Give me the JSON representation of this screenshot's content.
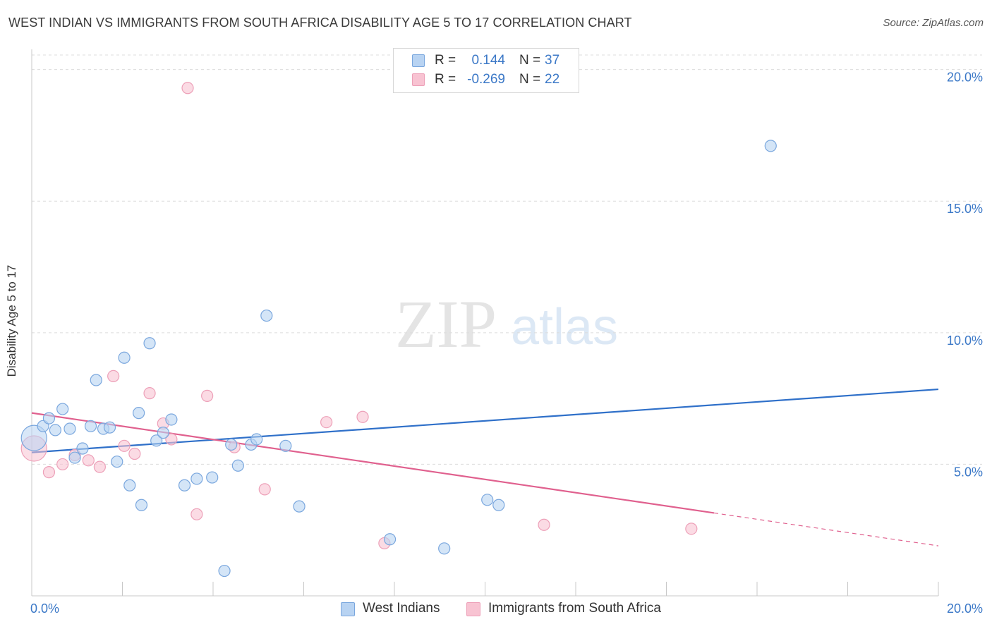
{
  "header": {
    "title": "WEST INDIAN VS IMMIGRANTS FROM SOUTH AFRICA DISABILITY AGE 5 TO 17 CORRELATION CHART",
    "source": "Source: ZipAtlas.com"
  },
  "legend_top": {
    "rows": [
      {
        "r_label": "R =",
        "r_value": "0.144",
        "n_label": "N =",
        "n_value": "37"
      },
      {
        "r_label": "R =",
        "r_value": "-0.269",
        "n_label": "N =",
        "n_value": "22"
      }
    ]
  },
  "watermark": {
    "zip": "ZIP",
    "atlas": "atlas"
  },
  "colors": {
    "blue_fill": "#b8d3f2",
    "blue_stroke": "#7aa7de",
    "blue_line": "#2f70c9",
    "pink_fill": "#f8c3d2",
    "pink_stroke": "#eda0b8",
    "pink_line": "#e0608e",
    "grid": "#dcdcdc",
    "tick_text": "#3b78c7"
  },
  "chart_data": {
    "type": "scatter",
    "title": "WEST INDIAN VS IMMIGRANTS FROM SOUTH AFRICA DISABILITY AGE 5 TO 17 CORRELATION CHART",
    "xlabel": "",
    "ylabel": "Disability Age 5 to 17",
    "xlim": [
      0,
      20
    ],
    "ylim": [
      0,
      20.5
    ],
    "x_tick_labels": [
      "0.0%",
      "20.0%"
    ],
    "y_ticks": [
      5,
      10,
      15,
      20
    ],
    "y_tick_labels": [
      "5.0%",
      "10.0%",
      "15.0%",
      "20.0%"
    ],
    "grid": true,
    "legend_position": "bottom-center",
    "series": [
      {
        "name": "West Indians",
        "color": "blue",
        "r": 0.144,
        "n": 37,
        "trend": {
          "x": [
            0,
            20
          ],
          "y": [
            5.45,
            7.85
          ]
        },
        "points": [
          {
            "x": 0.05,
            "y": 6.0,
            "big": true
          },
          {
            "x": 0.25,
            "y": 6.45
          },
          {
            "x": 0.38,
            "y": 6.75
          },
          {
            "x": 0.52,
            "y": 6.3
          },
          {
            "x": 0.68,
            "y": 7.1
          },
          {
            "x": 0.84,
            "y": 6.35
          },
          {
            "x": 0.95,
            "y": 5.25
          },
          {
            "x": 1.12,
            "y": 5.6
          },
          {
            "x": 1.3,
            "y": 6.45
          },
          {
            "x": 1.42,
            "y": 8.2
          },
          {
            "x": 1.58,
            "y": 6.35
          },
          {
            "x": 1.72,
            "y": 6.4
          },
          {
            "x": 1.88,
            "y": 5.1
          },
          {
            "x": 2.04,
            "y": 9.05
          },
          {
            "x": 2.16,
            "y": 4.2
          },
          {
            "x": 2.36,
            "y": 6.95
          },
          {
            "x": 2.42,
            "y": 3.45
          },
          {
            "x": 2.6,
            "y": 9.6
          },
          {
            "x": 2.75,
            "y": 5.9
          },
          {
            "x": 2.9,
            "y": 6.2
          },
          {
            "x": 3.08,
            "y": 6.7
          },
          {
            "x": 3.37,
            "y": 4.2
          },
          {
            "x": 3.64,
            "y": 4.45
          },
          {
            "x": 3.98,
            "y": 4.5
          },
          {
            "x": 4.25,
            "y": 0.95
          },
          {
            "x": 4.4,
            "y": 5.75
          },
          {
            "x": 4.55,
            "y": 4.95
          },
          {
            "x": 4.84,
            "y": 5.75
          },
          {
            "x": 4.96,
            "y": 5.95
          },
          {
            "x": 5.18,
            "y": 10.65
          },
          {
            "x": 5.6,
            "y": 5.7
          },
          {
            "x": 5.9,
            "y": 3.4
          },
          {
            "x": 7.9,
            "y": 2.15
          },
          {
            "x": 9.1,
            "y": 1.8
          },
          {
            "x": 10.05,
            "y": 3.65
          },
          {
            "x": 10.3,
            "y": 3.45
          },
          {
            "x": 16.3,
            "y": 17.1
          }
        ]
      },
      {
        "name": "Immigrants from South Africa",
        "color": "pink",
        "r": -0.269,
        "n": 22,
        "trend": {
          "x": [
            0,
            15.05
          ],
          "y": [
            6.95,
            3.15
          ],
          "dashed_to": {
            "x": 20,
            "y": 1.9
          }
        },
        "points": [
          {
            "x": 0.05,
            "y": 5.6,
            "big": true
          },
          {
            "x": 0.38,
            "y": 4.7
          },
          {
            "x": 0.68,
            "y": 5.0
          },
          {
            "x": 0.95,
            "y": 5.35
          },
          {
            "x": 1.25,
            "y": 5.15
          },
          {
            "x": 1.5,
            "y": 4.9
          },
          {
            "x": 1.8,
            "y": 8.35
          },
          {
            "x": 2.04,
            "y": 5.7
          },
          {
            "x": 2.27,
            "y": 5.4
          },
          {
            "x": 2.6,
            "y": 7.7
          },
          {
            "x": 2.9,
            "y": 6.55
          },
          {
            "x": 3.08,
            "y": 5.95
          },
          {
            "x": 3.44,
            "y": 19.3
          },
          {
            "x": 3.64,
            "y": 3.1
          },
          {
            "x": 3.87,
            "y": 7.6
          },
          {
            "x": 4.47,
            "y": 5.65
          },
          {
            "x": 5.14,
            "y": 4.05
          },
          {
            "x": 6.5,
            "y": 6.6
          },
          {
            "x": 7.3,
            "y": 6.8
          },
          {
            "x": 7.78,
            "y": 2.0
          },
          {
            "x": 11.3,
            "y": 2.7
          },
          {
            "x": 14.55,
            "y": 2.55
          }
        ]
      }
    ]
  }
}
